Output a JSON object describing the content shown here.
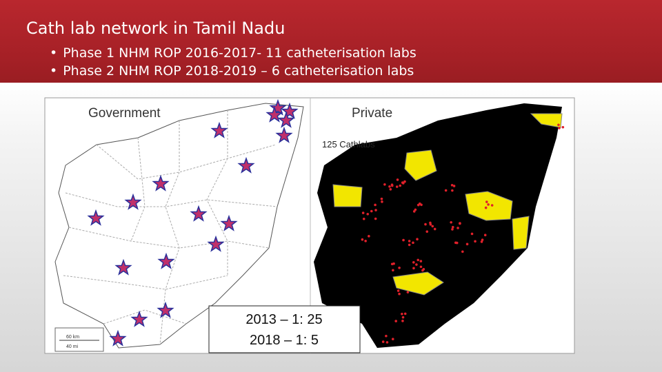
{
  "header": {
    "title": "Cath lab network in Tamil Nadu",
    "bullets": [
      "Phase 1 NHM ROP 2016-2017- 11 catheterisation labs",
      "Phase 2 NHM ROP 2018-2019 – 6 catheterisation labs"
    ]
  },
  "maps": {
    "left_label": "Government",
    "right_label": "Private",
    "right_note": "125 Cathlabs",
    "scale": [
      "60 km",
      "40 mi"
    ]
  },
  "ratio_box": [
    "2013 – 1: 25",
    "2018 – 1: 5"
  ]
}
